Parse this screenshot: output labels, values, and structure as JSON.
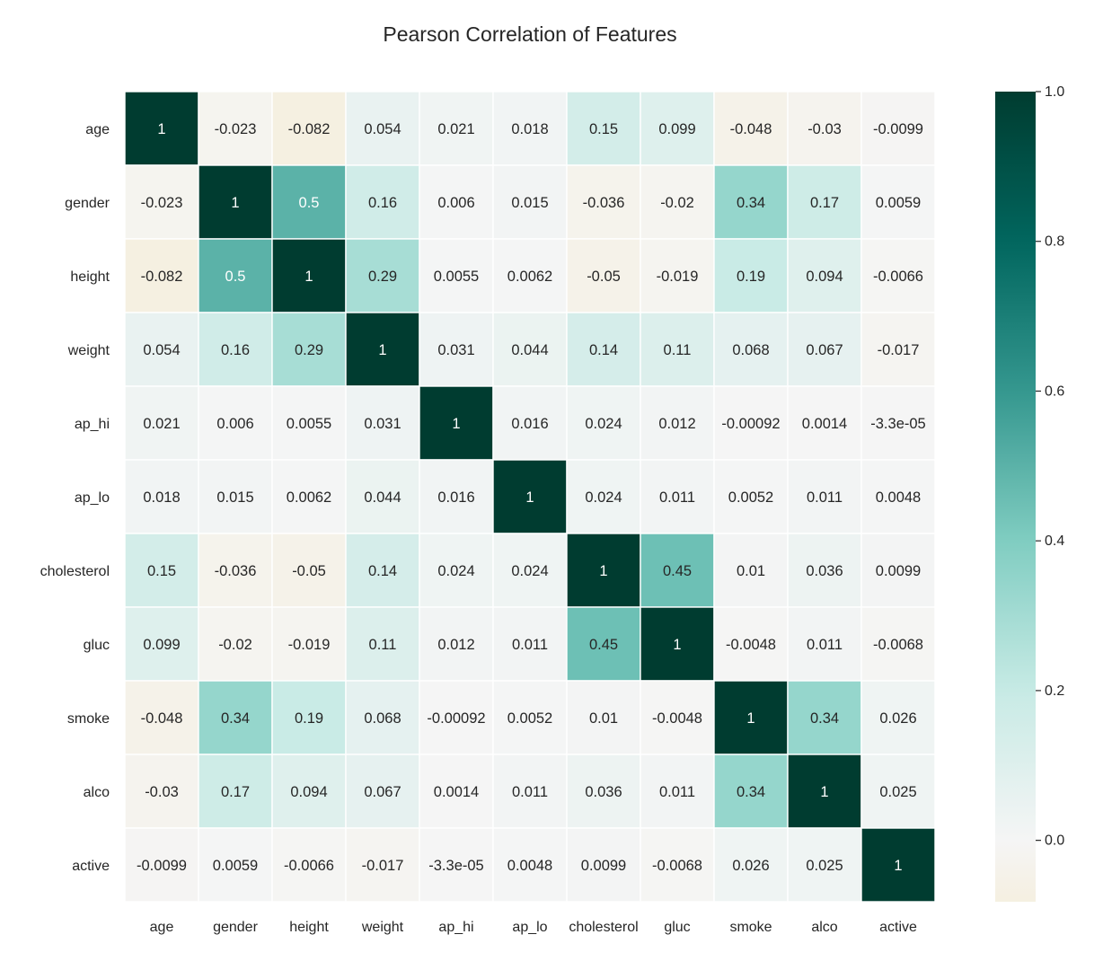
{
  "chart_data": {
    "type": "heatmap",
    "title": "Pearson Correlation of Features",
    "xlabel": "",
    "ylabel": "",
    "rows": [
      "age",
      "gender",
      "height",
      "weight",
      "ap_hi",
      "ap_lo",
      "cholesterol",
      "gluc",
      "smoke",
      "alco",
      "active"
    ],
    "columns": [
      "age",
      "gender",
      "height",
      "weight",
      "ap_hi",
      "ap_lo",
      "cholesterol",
      "gluc",
      "smoke",
      "alco",
      "active"
    ],
    "values": [
      [
        1,
        -0.023,
        -0.082,
        0.054,
        0.021,
        0.018,
        0.15,
        0.099,
        -0.048,
        -0.03,
        -0.0099
      ],
      [
        -0.023,
        1,
        0.5,
        0.16,
        0.006,
        0.015,
        -0.036,
        -0.02,
        0.34,
        0.17,
        0.0059
      ],
      [
        -0.082,
        0.5,
        1,
        0.29,
        0.0055,
        0.0062,
        -0.05,
        -0.019,
        0.19,
        0.094,
        -0.0066
      ],
      [
        0.054,
        0.16,
        0.29,
        1,
        0.031,
        0.044,
        0.14,
        0.11,
        0.068,
        0.067,
        -0.017
      ],
      [
        0.021,
        0.006,
        0.0055,
        0.031,
        1,
        0.016,
        0.024,
        0.012,
        -0.00092,
        0.0014,
        -3.3e-05
      ],
      [
        0.018,
        0.015,
        0.0062,
        0.044,
        0.016,
        1,
        0.024,
        0.011,
        0.0052,
        0.011,
        0.0048
      ],
      [
        0.15,
        -0.036,
        -0.05,
        0.14,
        0.024,
        0.024,
        1,
        0.45,
        0.01,
        0.036,
        0.0099
      ],
      [
        0.099,
        -0.02,
        -0.019,
        0.11,
        0.012,
        0.011,
        0.45,
        1,
        -0.0048,
        0.011,
        -0.0068
      ],
      [
        -0.048,
        0.34,
        0.19,
        0.068,
        -0.00092,
        0.0052,
        0.01,
        -0.0048,
        1,
        0.34,
        0.026
      ],
      [
        -0.03,
        0.17,
        0.094,
        0.067,
        0.0014,
        0.011,
        0.036,
        0.011,
        0.34,
        1,
        0.025
      ],
      [
        -0.0099,
        0.0059,
        -0.0066,
        -0.017,
        -3.3e-05,
        0.0048,
        0.0099,
        -0.0068,
        0.026,
        0.025,
        1
      ]
    ],
    "cell_labels": [
      [
        "1",
        "-0.023",
        "-0.082",
        "0.054",
        "0.021",
        "0.018",
        "0.15",
        "0.099",
        "-0.048",
        "-0.03",
        "-0.0099"
      ],
      [
        "-0.023",
        "1",
        "0.5",
        "0.16",
        "0.006",
        "0.015",
        "-0.036",
        "-0.02",
        "0.34",
        "0.17",
        "0.0059"
      ],
      [
        "-0.082",
        "0.5",
        "1",
        "0.29",
        "0.0055",
        "0.0062",
        "-0.05",
        "-0.019",
        "0.19",
        "0.094",
        "-0.0066"
      ],
      [
        "0.054",
        "0.16",
        "0.29",
        "1",
        "0.031",
        "0.044",
        "0.14",
        "0.11",
        "0.068",
        "0.067",
        "-0.017"
      ],
      [
        "0.021",
        "0.006",
        "0.0055",
        "0.031",
        "1",
        "0.016",
        "0.024",
        "0.012",
        "-0.00092",
        "0.0014",
        "-3.3e-05"
      ],
      [
        "0.018",
        "0.015",
        "0.0062",
        "0.044",
        "0.016",
        "1",
        "0.024",
        "0.011",
        "0.0052",
        "0.011",
        "0.0048"
      ],
      [
        "0.15",
        "-0.036",
        "-0.05",
        "0.14",
        "0.024",
        "0.024",
        "1",
        "0.45",
        "0.01",
        "0.036",
        "0.0099"
      ],
      [
        "0.099",
        "-0.02",
        "-0.019",
        "0.11",
        "0.012",
        "0.011",
        "0.45",
        "1",
        "-0.0048",
        "0.011",
        "-0.0068"
      ],
      [
        "-0.048",
        "0.34",
        "0.19",
        "0.068",
        "-0.00092",
        "0.0052",
        "0.01",
        "-0.0048",
        "1",
        "0.34",
        "0.026"
      ],
      [
        "-0.03",
        "0.17",
        "0.094",
        "0.067",
        "0.0014",
        "0.011",
        "0.036",
        "0.011",
        "0.34",
        "1",
        "0.025"
      ],
      [
        "-0.0099",
        "0.0059",
        "-0.0066",
        "-0.017",
        "-3.3e-05",
        "0.0048",
        "0.0099",
        "-0.0068",
        "0.026",
        "0.025",
        "1"
      ]
    ],
    "colorbar": {
      "min": -0.082,
      "max": 1.0,
      "ticks": [
        0.0,
        0.2,
        0.4,
        0.6,
        0.8,
        1.0
      ],
      "tick_labels": [
        "0.0",
        "0.2",
        "0.4",
        "0.6",
        "0.8",
        "1.0"
      ],
      "colormap": "BrBG",
      "color_stops": [
        "#543005",
        "#8c510a",
        "#bf812d",
        "#dfc27d",
        "#f6e8c3",
        "#f5f5f5",
        "#c7eae5",
        "#80cdc1",
        "#35978f",
        "#01665e",
        "#003c30"
      ],
      "stops_range": [
        -1.0,
        1.0
      ]
    },
    "grid_line_color": "#ffffff",
    "legend": "right"
  }
}
